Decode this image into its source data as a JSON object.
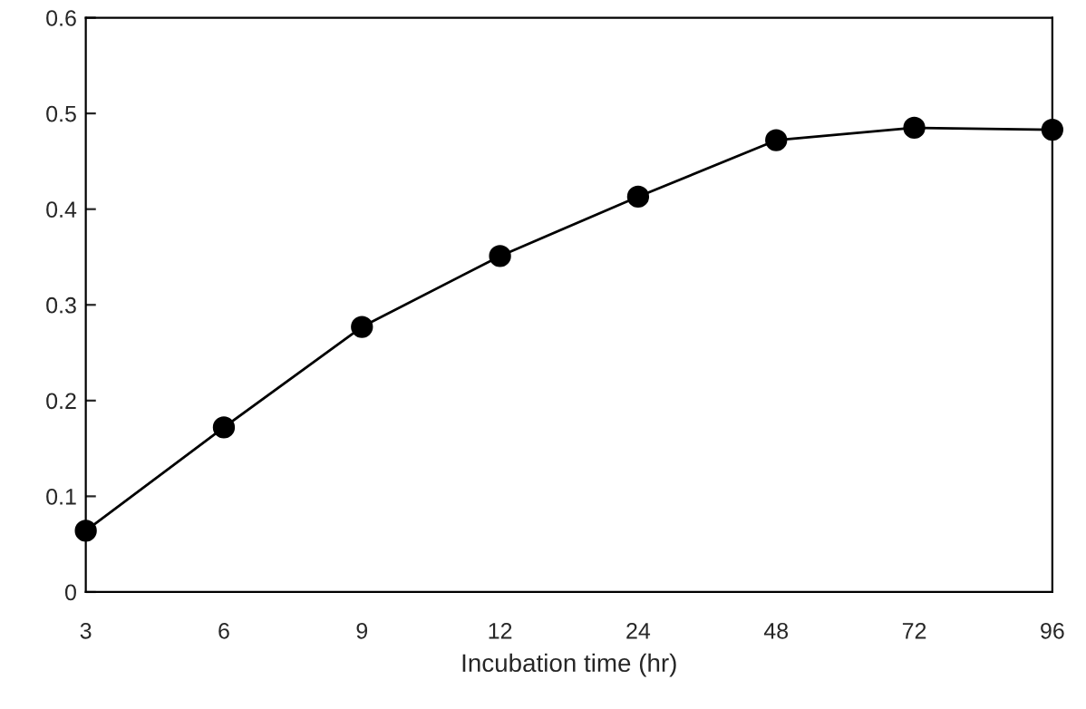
{
  "chart_data": {
    "type": "line",
    "xlabel": "Incubation time (hr)",
    "categories": [
      "3",
      "6",
      "9",
      "12",
      "24",
      "48",
      "72",
      "96"
    ],
    "series": [
      {
        "color": "#000000",
        "values": [
          0.064,
          0.172,
          0.277,
          0.351,
          0.413,
          0.472,
          0.485,
          0.483
        ]
      }
    ],
    "ylim": [
      0,
      0.6
    ],
    "yticks": [
      {
        "value": 0,
        "label": "0"
      },
      0.1,
      0.2,
      0.3,
      0.4,
      0.5,
      0.6
    ],
    "marker": "circle",
    "line_style": "solid",
    "grid": false,
    "legend": false
  }
}
